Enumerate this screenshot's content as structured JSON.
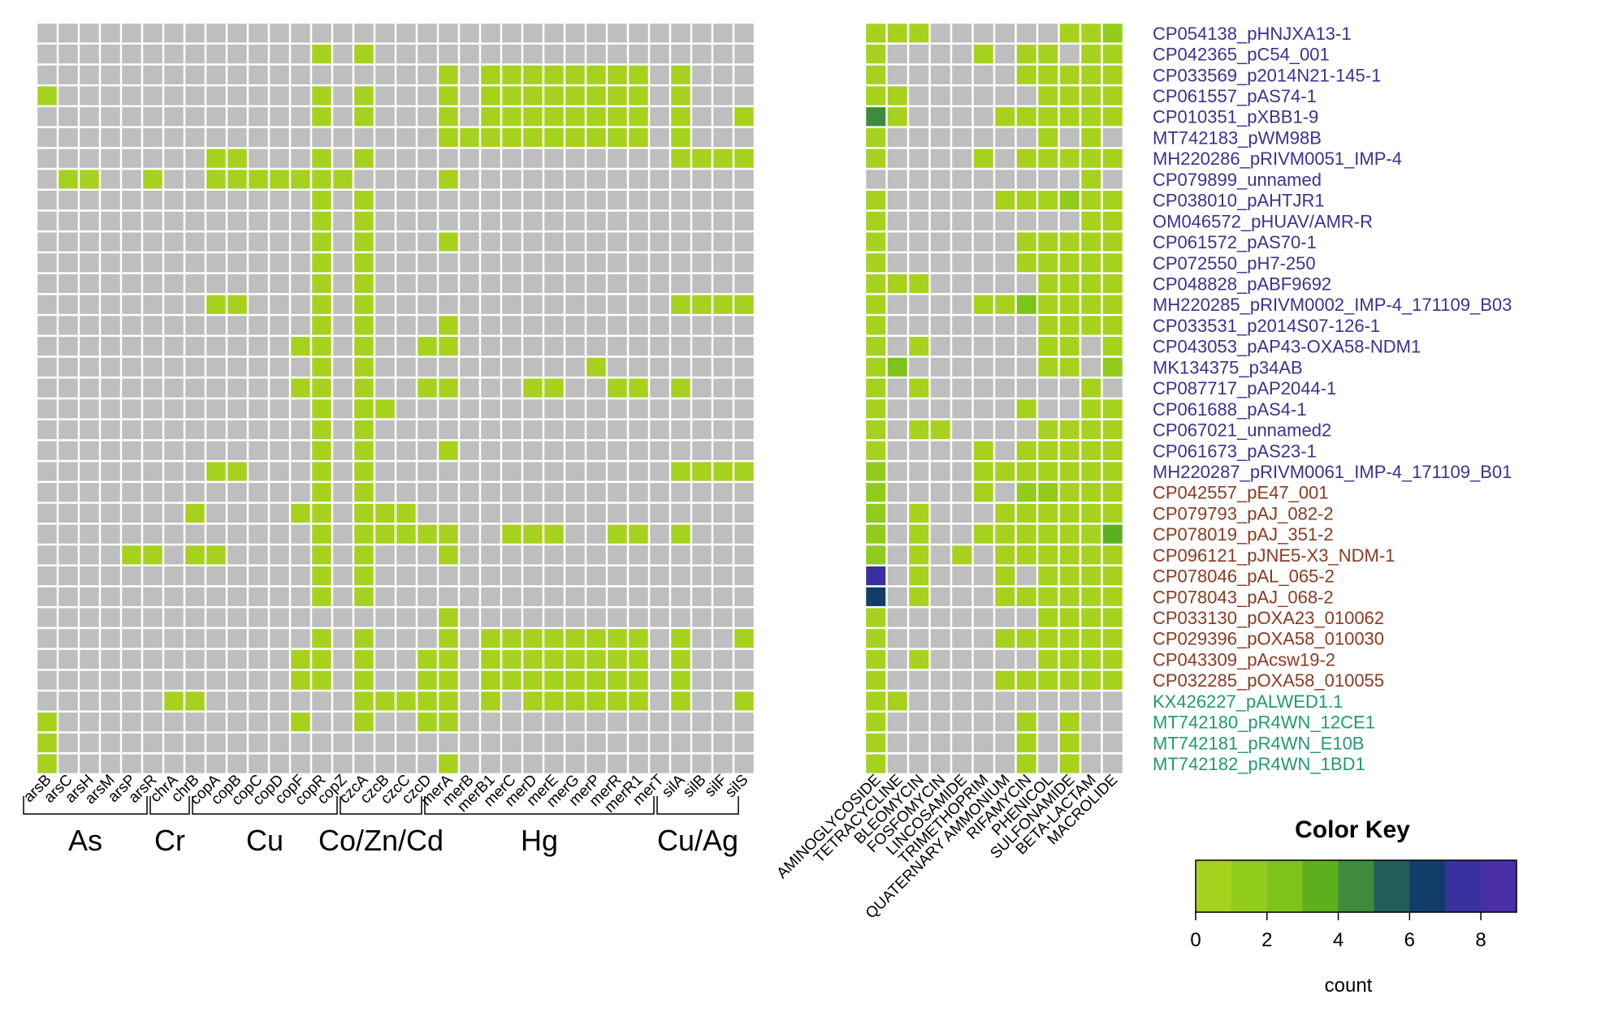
{
  "chart_data": {
    "type": "heatmap",
    "title": "",
    "row_labels": [
      "CP054138_pHNJXA13-1",
      "CP042365_pC54_001",
      "CP033569_p2014N21-145-1",
      "CP061557_pAS74-1",
      "CP010351_pXBB1-9",
      "MT742183_pWM98B",
      "MH220286_pRIVM0051_IMP-4",
      "CP079899_unnamed",
      "CP038010_pAHTJR1",
      "OM046572_pHUAV/AMR-R",
      "CP061572_pAS70-1",
      "CP072550_pH7-250",
      "CP048828_pABF9692",
      "MH220285_pRIVM0002_IMP-4_171109_B03",
      "CP033531_p2014S07-126-1",
      "CP043053_pAP43-OXA58-NDM1",
      "MK134375_p34AB",
      "CP087717_pAP2044-1",
      "CP061688_pAS4-1",
      "CP067021_unnamed2",
      "CP061673_pAS23-1",
      "MH220287_pRIVM0061_IMP-4_171109_B01",
      "CP042557_pE47_001",
      "CP079793_pAJ_082-2",
      "CP078019_pAJ_351-2",
      "CP096121_pJNE5-X3_NDM-1",
      "CP078046_pAL_065-2",
      "CP078043_pAJ_068-2",
      "CP033130_pOXA23_010062",
      "CP029396_pOXA58_010030",
      "CP043309_pAcsw19-2",
      "CP032285_pOXA58_010055",
      "KX426227_pALWED1.1",
      "MT742180_pR4WN_12CE1",
      "MT742181_pR4WN_E10B",
      "MT742182_pR4WN_1BD1"
    ],
    "row_groups": [
      0,
      0,
      0,
      0,
      0,
      0,
      0,
      0,
      0,
      0,
      0,
      0,
      0,
      0,
      0,
      0,
      0,
      0,
      0,
      0,
      0,
      0,
      1,
      1,
      1,
      1,
      1,
      1,
      1,
      1,
      1,
      1,
      2,
      2,
      2,
      2
    ],
    "row_group_colors": [
      "#3a3193",
      "#8b3a1e",
      "#1f9a6e"
    ],
    "metal_genes": [
      "arsB",
      "arsC",
      "arsH",
      "arsM",
      "arsP",
      "arsR",
      "chrA",
      "chrB",
      "copA",
      "copB",
      "copC",
      "copD",
      "copF",
      "copR",
      "copZ",
      "czcA",
      "czcB",
      "czcC",
      "czcD",
      "merA",
      "merB",
      "merB1",
      "merC",
      "merD",
      "merE",
      "merG",
      "merP",
      "merR",
      "merR1",
      "merT",
      "silA",
      "silB",
      "silF",
      "silS"
    ],
    "metal_groups": [
      {
        "label": "As",
        "from": 0,
        "to": 5
      },
      {
        "label": "Cr",
        "from": 6,
        "to": 7
      },
      {
        "label": "Cu",
        "from": 8,
        "to": 14
      },
      {
        "label": "Co/Zn/Cd",
        "from": 15,
        "to": 18
      },
      {
        "label": "Hg",
        "from": 19,
        "to": 29
      },
      {
        "label": "Cu/Ag",
        "from": 30,
        "to": 33
      }
    ],
    "metal_matrix": [
      "0000000000000000000000000000000000",
      "0000000000000101000000000000000000",
      "0000000000000000000101111111101000",
      "1000000000000101000101111111101000",
      "0000000000000101000101111111101001",
      "0000000000000000000111111111101000",
      "0000000011000101000000000000001111",
      "0110010011111110000100000000000000",
      "0000000000000101000000000000000000",
      "0000000000000101000000000000000000",
      "0000000000000101000100000000000000",
      "0000000000000101000000000000000000",
      "0000000000000101000000000000000000",
      "0000000011000101000000000000001111",
      "0000000000000101000100000000000000",
      "0000000000001101001100000000000000",
      "0000000000000101000000000010000000",
      "0000000000001101001100011001101000",
      "0000000000000101100000000000000000",
      "0000000000000101000000000000000000",
      "0000000000000101000100000000000000",
      "0000000011000101000000000000001111",
      "0000000000000101000000000000000000",
      "0000000100001101110000000000000000",
      "0000000000000101111100111001101000",
      "0000110110000101000100000000000000",
      "0000000000000101000000000000000000",
      "0000000000000101000000000000000000",
      "0000000000000000000100000000000000",
      "0000000000000101000101111111101001",
      "0000000000001101001101111111101000",
      "0000000000001101001101111111101000",
      "0000001100000001111101011111101001",
      "1000000000001001001100000000000000",
      "1000000000000000000000000000000000",
      "1000000000000000000100000000000000"
    ],
    "metal_color": "#a6d21e",
    "antibiotic_classes": [
      "AMINOGLYCOSIDE",
      "TETRACYCLINE",
      "BLEOMYCIN",
      "FOSFOMYCIN",
      "LINCOSAMIDE",
      "TRIMETHOPRIM",
      "QUATERNARY AMMONIUM",
      "RIFAMYCIN",
      "PHENICOL",
      "SULFONAMIDE",
      "BETA-LACTAM",
      "MACROLIDE"
    ],
    "antibiotic_matrix": [
      [
        1,
        1,
        1,
        0,
        0,
        0,
        0,
        0,
        0,
        1,
        1,
        2
      ],
      [
        1,
        0,
        0,
        0,
        0,
        1,
        0,
        1,
        1,
        0,
        1,
        1
      ],
      [
        1,
        0,
        0,
        0,
        0,
        0,
        0,
        1,
        1,
        1,
        1,
        1
      ],
      [
        1,
        1,
        0,
        0,
        0,
        0,
        0,
        0,
        1,
        1,
        1,
        1
      ],
      [
        5,
        1,
        0,
        0,
        0,
        0,
        1,
        1,
        1,
        1,
        1,
        1
      ],
      [
        1,
        0,
        0,
        0,
        0,
        0,
        0,
        0,
        1,
        0,
        1,
        0
      ],
      [
        1,
        0,
        0,
        0,
        0,
        1,
        0,
        1,
        1,
        1,
        1,
        1
      ],
      [
        0,
        0,
        0,
        0,
        0,
        0,
        0,
        0,
        0,
        0,
        1,
        0
      ],
      [
        1,
        0,
        0,
        0,
        0,
        0,
        1,
        1,
        1,
        2,
        1,
        1
      ],
      [
        1,
        0,
        0,
        0,
        0,
        0,
        0,
        0,
        0,
        0,
        1,
        1
      ],
      [
        1,
        0,
        0,
        0,
        0,
        0,
        0,
        1,
        1,
        1,
        1,
        1
      ],
      [
        1,
        0,
        0,
        0,
        0,
        0,
        0,
        1,
        1,
        1,
        1,
        1
      ],
      [
        1,
        1,
        1,
        0,
        0,
        0,
        0,
        0,
        1,
        1,
        1,
        1
      ],
      [
        1,
        0,
        0,
        0,
        0,
        1,
        1,
        3,
        1,
        1,
        1,
        1
      ],
      [
        1,
        0,
        0,
        0,
        0,
        0,
        0,
        0,
        1,
        1,
        1,
        1
      ],
      [
        1,
        0,
        1,
        0,
        0,
        0,
        0,
        0,
        1,
        1,
        0,
        1
      ],
      [
        1,
        3,
        0,
        0,
        0,
        0,
        0,
        0,
        1,
        1,
        0,
        2
      ],
      [
        1,
        0,
        1,
        0,
        0,
        0,
        0,
        0,
        0,
        0,
        1,
        0
      ],
      [
        1,
        0,
        0,
        0,
        0,
        0,
        0,
        1,
        0,
        0,
        1,
        1
      ],
      [
        1,
        0,
        1,
        1,
        0,
        0,
        0,
        0,
        1,
        1,
        1,
        1
      ],
      [
        1,
        0,
        0,
        0,
        0,
        1,
        0,
        1,
        1,
        1,
        1,
        1
      ],
      [
        2,
        0,
        0,
        0,
        0,
        1,
        1,
        1,
        1,
        1,
        1,
        1
      ],
      [
        2,
        0,
        0,
        0,
        0,
        1,
        0,
        2,
        2,
        1,
        1,
        1
      ],
      [
        2,
        0,
        1,
        0,
        0,
        0,
        1,
        1,
        1,
        1,
        1,
        1
      ],
      [
        2,
        0,
        1,
        0,
        0,
        1,
        1,
        1,
        1,
        1,
        1,
        4
      ],
      [
        2,
        0,
        1,
        0,
        1,
        0,
        1,
        1,
        1,
        1,
        1,
        1
      ],
      [
        8,
        0,
        1,
        0,
        0,
        0,
        1,
        0,
        1,
        1,
        1,
        1
      ],
      [
        7,
        0,
        1,
        0,
        0,
        0,
        1,
        1,
        1,
        1,
        1,
        1
      ],
      [
        1,
        0,
        0,
        0,
        0,
        0,
        0,
        0,
        1,
        1,
        1,
        1
      ],
      [
        1,
        0,
        0,
        0,
        0,
        0,
        1,
        1,
        1,
        1,
        1,
        1
      ],
      [
        1,
        0,
        1,
        0,
        0,
        0,
        0,
        0,
        1,
        1,
        1,
        1
      ],
      [
        1,
        0,
        0,
        0,
        0,
        0,
        1,
        1,
        1,
        1,
        1,
        1
      ],
      [
        1,
        1,
        0,
        0,
        0,
        0,
        0,
        0,
        0,
        0,
        0,
        0
      ],
      [
        1,
        0,
        0,
        0,
        0,
        0,
        0,
        1,
        0,
        1,
        0,
        0
      ],
      [
        1,
        0,
        0,
        0,
        0,
        0,
        0,
        1,
        0,
        1,
        0,
        0
      ],
      [
        1,
        0,
        0,
        0,
        0,
        0,
        0,
        1,
        0,
        1,
        0,
        0
      ]
    ],
    "empty_color": "#bebebe",
    "color_scale": [
      "#a6d21e",
      "#91cc1d",
      "#7cc41a",
      "#5bb01c",
      "#3f8b3e",
      "#235d5c",
      "#133d69",
      "#3a31a0",
      "#4b2fa6"
    ],
    "color_key": {
      "title": "Color Key",
      "xlabel": "count",
      "ticks": [
        0,
        2,
        4,
        6,
        8
      ],
      "range": [
        0,
        9
      ]
    }
  }
}
